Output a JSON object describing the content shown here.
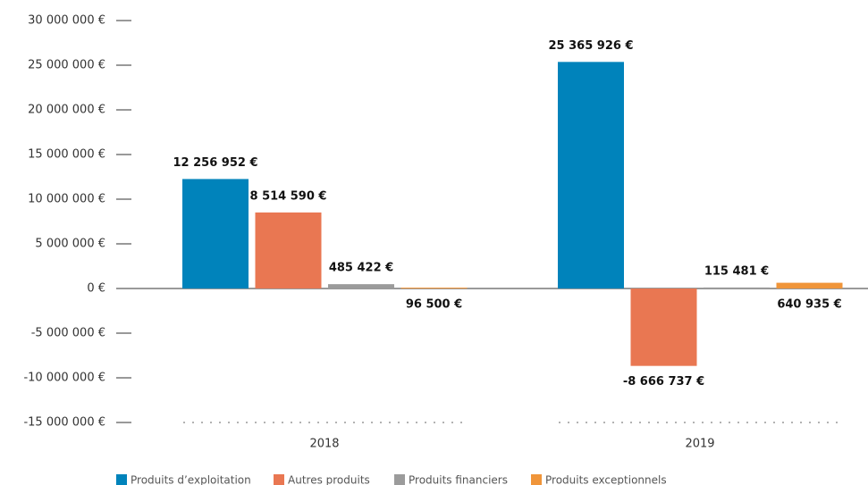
{
  "chart_data": {
    "type": "bar",
    "categories": [
      "2018",
      "2019"
    ],
    "series": [
      {
        "name": "Produits d’exploitation",
        "color": "#0083bb",
        "values": [
          12256952,
          25365926
        ],
        "value_labels": [
          "12 256 952 €",
          "25 365 926 €"
        ]
      },
      {
        "name": "Autres produits",
        "color": "#e97752",
        "values": [
          8514590,
          -8666737
        ],
        "value_labels": [
          "8 514 590 €",
          "-8 666 737 €"
        ]
      },
      {
        "name": "Produits financiers",
        "color": "#9b9b9b",
        "values": [
          485422,
          115481
        ],
        "value_labels": [
          "485 422 €",
          "115 481 €"
        ]
      },
      {
        "name": "Produits exceptionnels",
        "color": "#f0953a",
        "values": [
          96500,
          640935
        ],
        "value_labels": [
          "96 500 €",
          "640 935 €"
        ]
      }
    ],
    "ylim": [
      -15000000,
      30000000
    ],
    "yticks": [
      {
        "value": -15000000,
        "label": "-15 000 000 €"
      },
      {
        "value": -10000000,
        "label": "-10 000 000 €"
      },
      {
        "value": -5000000,
        "label": "-5 000 000 €"
      },
      {
        "value": 0,
        "label": "0 €"
      },
      {
        "value": 5000000,
        "label": "5 000 000 €"
      },
      {
        "value": 10000000,
        "label": "10 000 000 €"
      },
      {
        "value": 15000000,
        "label": "15 000 000 €"
      },
      {
        "value": 20000000,
        "label": "20 000 000 €"
      },
      {
        "value": 25000000,
        "label": "25 000 000 €"
      },
      {
        "value": 30000000,
        "label": "30 000 000 €"
      }
    ],
    "legend": "bottom"
  }
}
